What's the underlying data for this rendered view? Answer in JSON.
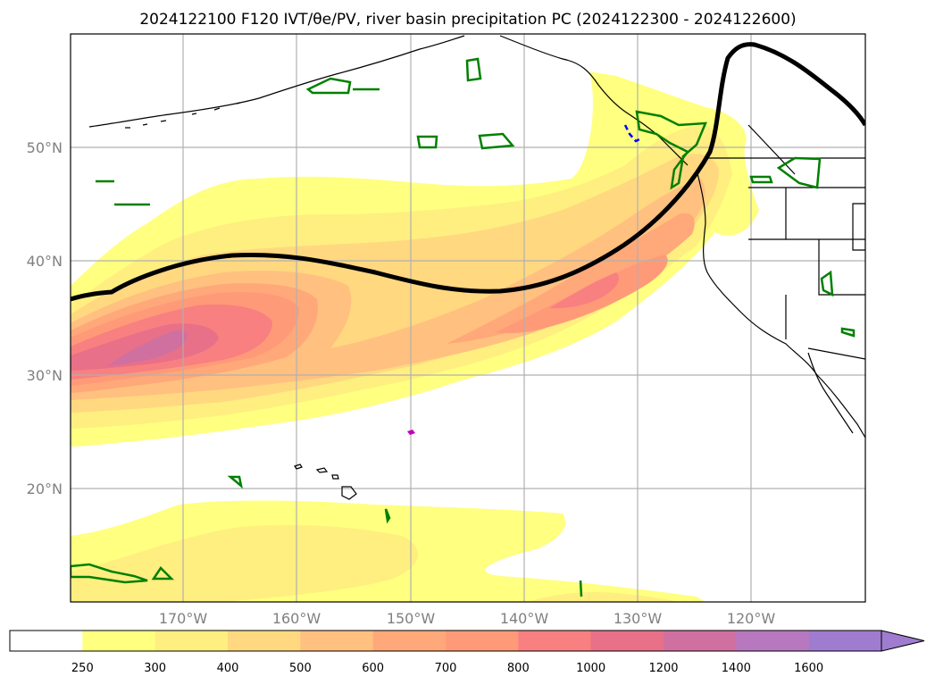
{
  "map": {
    "title": "2024122100 F120 IVT/θe/PV, river basin precipitation PC (2024122300 - 2024122600)",
    "lat_ticks": [
      "50°N",
      "40°N",
      "30°N",
      "20°N"
    ],
    "lon_ticks": [
      "170°W",
      "160°W",
      "150°W",
      "140°W",
      "130°W",
      "120°W"
    ],
    "extent": {
      "lon_min": -180,
      "lon_max": -110,
      "lat_min": 10,
      "lat_max": 60
    },
    "grid": true,
    "projection": "PlateCarree"
  },
  "colorbar": {
    "levels": [
      "250",
      "300",
      "400",
      "500",
      "600",
      "700",
      "800",
      "1000",
      "1200",
      "1400",
      "1600"
    ],
    "colors": [
      "#ffffff",
      "#ffff80",
      "#ffee80",
      "#ffd880",
      "#ffc080",
      "#ffa87a",
      "#ff9a78",
      "#f88080",
      "#e87088",
      "#d070a0",
      "#b878c0",
      "#a07cd0"
    ],
    "extend": "max"
  },
  "colors": {
    "theta_contour": "#000000",
    "precip_positive": "#008000",
    "precip_negative": "#0000ff",
    "pv_marker": "#c000c0"
  }
}
